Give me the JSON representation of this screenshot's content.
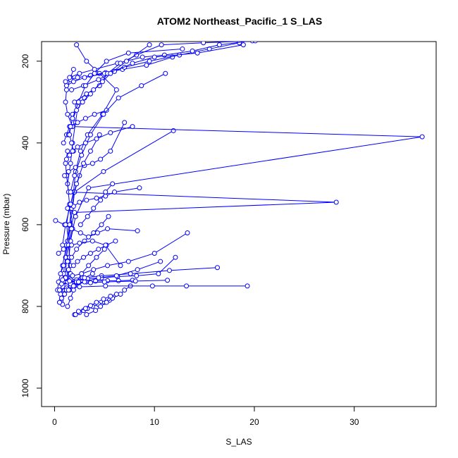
{
  "chart_data": {
    "type": "line",
    "title": "ATOM2 Northeast_Pacific_1 S_LAS",
    "xlabel": "S_LAS",
    "ylabel": "Pressure (mbar)",
    "xlim": [
      -1.3,
      38.2
    ],
    "ylim": [
      1045,
      152
    ],
    "y_inverted": true,
    "x_ticks": [
      0,
      10,
      20,
      30
    ],
    "y_ticks": [
      200,
      400,
      600,
      800,
      1000
    ],
    "series_color": "#0000ff",
    "series": [
      {
        "x": [
          1.5,
          1.3,
          1.6,
          1.4,
          1.8,
          1.5,
          1.9,
          2.1,
          2.6,
          3.3,
          4.8,
          6.2,
          4.5,
          3.2,
          2.2
        ],
        "y": [
          760,
          740,
          700,
          650,
          610,
          560,
          520,
          470,
          420,
          380,
          330,
          270,
          230,
          200,
          160
        ]
      },
      {
        "x": [
          0.8,
          1.0,
          1.1,
          1.2,
          1.4,
          1.2,
          1.5,
          1.3,
          1.6,
          1.8,
          2.1,
          2.4
        ],
        "y": [
          795,
          760,
          720,
          680,
          640,
          600,
          550,
          500,
          450,
          400,
          350,
          300
        ]
      },
      {
        "x": [
          0.5,
          0.6,
          0.9,
          1.1,
          1.3,
          1.6,
          2.0,
          4.9,
          11.9
        ],
        "y": [
          790,
          760,
          720,
          680,
          640,
          600,
          520,
          470,
          370
        ]
      },
      {
        "x": [
          0.3,
          0.4,
          0.8,
          1.2,
          1.5,
          1.7,
          2.0,
          2.5
        ],
        "y": [
          760,
          740,
          700,
          650,
          600,
          560,
          520,
          480
        ]
      },
      {
        "x": [
          1.8,
          1.6,
          1.4,
          1.6,
          2.1,
          3.4,
          36.8,
          1.8,
          1.3,
          1.1,
          1.2,
          1.6,
          1.9
        ],
        "y": [
          745,
          720,
          690,
          640,
          580,
          510,
          385,
          360,
          330,
          300,
          270,
          240,
          220
        ]
      },
      {
        "x": [
          1.2,
          1.4,
          1.5,
          1.4,
          1.6,
          2.0,
          28.2,
          1.4,
          1.2,
          1.1,
          1.3
        ],
        "y": [
          740,
          710,
          680,
          650,
          610,
          570,
          545,
          520,
          480,
          450,
          420
        ]
      },
      {
        "x": [
          0.6,
          0.9,
          1.3,
          1.7,
          2.2,
          3.0,
          3.9,
          4.7,
          5.4
        ],
        "y": [
          720,
          700,
          690,
          680,
          660,
          640,
          620,
          600,
          580
        ]
      },
      {
        "x": [
          2.0,
          2.5,
          2.9,
          3.3,
          3.8,
          4.4,
          5.0,
          5.5
        ],
        "y": [
          820,
          815,
          810,
          805,
          800,
          795,
          790,
          785
        ]
      },
      {
        "x": [
          3.2,
          4.1,
          4.6,
          5.2,
          5.8,
          6.6,
          7.0,
          7.6
        ],
        "y": [
          820,
          810,
          800,
          790,
          780,
          770,
          760,
          750
        ]
      },
      {
        "x": [
          2.1,
          2.4,
          3.1,
          3.6,
          4.2,
          4.9,
          5.6,
          6.2
        ],
        "y": [
          820,
          812,
          805,
          798,
          790,
          782,
          775,
          770
        ]
      },
      {
        "x": [
          0.5,
          1.2,
          2.5,
          5.1,
          9.8,
          13.2,
          19.3
        ],
        "y": [
          760,
          755,
          752,
          750,
          750,
          750,
          750
        ]
      },
      {
        "x": [
          0.9,
          1.6,
          2.8,
          4.7,
          7.6,
          11.5,
          16.3
        ],
        "y": [
          740,
          735,
          730,
          725,
          720,
          712,
          705
        ]
      },
      {
        "x": [
          1.1,
          1.8,
          2.7,
          3.9,
          5.3,
          7.4,
          10.0,
          13.3
        ],
        "y": [
          730,
          725,
          720,
          710,
          700,
          690,
          670,
          620
        ]
      },
      {
        "x": [
          0.7,
          1.3,
          2.2,
          3.3,
          4.7,
          6.3,
          8.2,
          10.4,
          12.1
        ],
        "y": [
          745,
          740,
          735,
          732,
          730,
          727,
          725,
          720,
          680
        ]
      },
      {
        "x": [
          1.6,
          2.4,
          3.2,
          4.1,
          5.3,
          6.4,
          7.8
        ],
        "y": [
          745,
          742,
          740,
          738,
          737,
          737,
          736
        ]
      },
      {
        "x": [
          0.8,
          1.5,
          2.4,
          3.6,
          5.0,
          8.1,
          11.3
        ],
        "y": [
          735,
          738,
          740,
          742,
          740,
          738,
          736
        ]
      },
      {
        "x": [
          1.9,
          2.3,
          2.9,
          3.6,
          4.4,
          5.2,
          6.1
        ],
        "y": [
          700,
          690,
          680,
          670,
          660,
          650,
          640
        ]
      },
      {
        "x": [
          0.1,
          1.0,
          1.7,
          2.6,
          3.4,
          4.3,
          5.3,
          8.3
        ],
        "y": [
          590,
          600,
          610,
          620,
          630,
          620,
          610,
          615
        ]
      },
      {
        "x": [
          1.3,
          1.9,
          2.5,
          3.2,
          4.2,
          5.1,
          6.0,
          8.5
        ],
        "y": [
          560,
          555,
          545,
          540,
          535,
          530,
          520,
          510
        ]
      },
      {
        "x": [
          1.0,
          1.4,
          2.1,
          3.0,
          3.8,
          4.6,
          5.6,
          7.0
        ],
        "y": [
          480,
          470,
          460,
          455,
          450,
          440,
          420,
          350
        ]
      },
      {
        "x": [
          0.9,
          1.2,
          1.5,
          2.3,
          3.1,
          4.0,
          5.2
        ],
        "y": [
          400,
          380,
          360,
          350,
          340,
          330,
          320
        ]
      },
      {
        "x": [
          1.1,
          1.6,
          2.3,
          3.6,
          5.1,
          6.8,
          9.2,
          11.8
        ],
        "y": [
          250,
          245,
          240,
          235,
          228,
          220,
          210,
          190
        ]
      },
      {
        "x": [
          1.2,
          1.9,
          3.0,
          5.0,
          7.0,
          9.5,
          12.5,
          15.5,
          18.5
        ],
        "y": [
          260,
          250,
          240,
          230,
          215,
          200,
          185,
          170,
          155
        ]
      },
      {
        "x": [
          1.5,
          2.5,
          4.0,
          6.3,
          8.8,
          11.0,
          13.8,
          16.5,
          19.8
        ],
        "y": [
          240,
          230,
          220,
          205,
          190,
          185,
          175,
          160,
          150
        ]
      },
      {
        "x": [
          1.7,
          2.9,
          4.4,
          6.0,
          7.8,
          10.0,
          14.3,
          18.9
        ],
        "y": [
          270,
          260,
          245,
          225,
          205,
          190,
          180,
          160
        ]
      },
      {
        "x": [
          2.0,
          3.2,
          4.5,
          5.3,
          6.6,
          8.2,
          10.7,
          14.9,
          20.1
        ],
        "y": [
          300,
          280,
          260,
          230,
          205,
          185,
          160,
          155,
          150
        ]
      },
      {
        "x": [
          1.8,
          2.3,
          3.0,
          3.9,
          4.8,
          5.6,
          7.2,
          9.5
        ],
        "y": [
          330,
          310,
          290,
          270,
          250,
          230,
          200,
          160
        ]
      },
      {
        "x": [
          1.4,
          1.8,
          2.4,
          3.1,
          4.0,
          5.2,
          7.4,
          12.8
        ],
        "y": [
          380,
          340,
          300,
          260,
          230,
          200,
          180,
          170
        ]
      },
      {
        "x": [
          1.6,
          2.0,
          2.7,
          3.6,
          4.9,
          6.4,
          8.7,
          11.1
        ],
        "y": [
          520,
          480,
          430,
          380,
          330,
          290,
          260,
          230
        ]
      },
      {
        "x": [
          0.8,
          1.1,
          1.6,
          2.2,
          2.9,
          3.6,
          4.5
        ],
        "y": [
          650,
          600,
          550,
          500,
          450,
          420,
          380
        ]
      },
      {
        "x": [
          2.6,
          3.3,
          3.9,
          4.6,
          5.1,
          5.8
        ],
        "y": [
          600,
          580,
          560,
          540,
          520,
          500
        ]
      },
      {
        "x": [
          0.4,
          0.9,
          1.7,
          2.5,
          3.8,
          5.1,
          6.6
        ],
        "y": [
          670,
          660,
          650,
          645,
          640,
          650,
          700
        ]
      },
      {
        "x": [
          0.6,
          1.2,
          2.0,
          3.0,
          4.4,
          6.2,
          8.3,
          10.6
        ],
        "y": [
          770,
          760,
          750,
          740,
          730,
          725,
          710,
          690
        ]
      },
      {
        "x": [
          1.3,
          1.6,
          1.9,
          2.2,
          2.7,
          3.4,
          4.2,
          5.0
        ],
        "y": [
          800,
          780,
          760,
          740,
          720,
          700,
          680,
          660
        ]
      },
      {
        "x": [
          0.5,
          0.7,
          1.0,
          1.4,
          1.9,
          2.4,
          3.0,
          3.8
        ],
        "y": [
          790,
          780,
          770,
          760,
          750,
          740,
          730,
          720
        ]
      },
      {
        "x": [
          1.9,
          1.7,
          1.5,
          1.6,
          1.8,
          2.2,
          2.8,
          3.6
        ],
        "y": [
          420,
          400,
          380,
          360,
          340,
          320,
          300,
          280
        ]
      },
      {
        "x": [
          1.2,
          1.5,
          1.8,
          2.3,
          3.1,
          4.2,
          5.6,
          7.8
        ],
        "y": [
          440,
          430,
          420,
          410,
          400,
          390,
          375,
          360
        ]
      }
    ]
  }
}
